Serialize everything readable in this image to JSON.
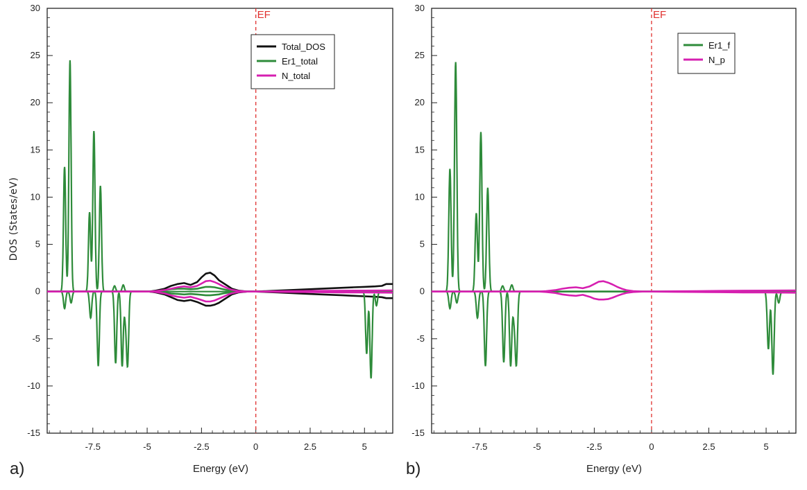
{
  "figure": {
    "ylabel": "DOS (States/eV)",
    "xlabel": "Energy (eV)"
  },
  "chart_data": [
    {
      "type": "line",
      "panel_label": "a)",
      "xlabel": "Energy (eV)",
      "ylabel": "DOS (States/eV)",
      "xlim": [
        -9.6,
        6.3
      ],
      "ylim": [
        -15,
        30
      ],
      "xticks": [
        -7.5,
        -5,
        -2.5,
        0,
        2.5,
        5
      ],
      "xtick_labels": [
        "-7.5",
        "-5",
        "-2.5",
        "0",
        "2.5",
        "5"
      ],
      "yticks": [
        -15,
        -10,
        -5,
        0,
        5,
        10,
        15,
        20,
        25,
        30
      ],
      "ytick_labels": [
        "-15",
        "-10",
        "-5",
        "0",
        "5",
        "10",
        "15",
        "20",
        "25",
        "30"
      ],
      "fermi_level": {
        "x": 0,
        "label": "EF",
        "color": "#e0302e"
      },
      "legend_position": "top-right",
      "series": [
        {
          "name": "Total_DOS",
          "color": "#111111",
          "x": [
            -9.6,
            -4.9,
            -4.6,
            -4.2,
            -3.9,
            -3.6,
            -3.3,
            -3.0,
            -2.7,
            -2.5,
            -2.3,
            -2.1,
            -1.9,
            -1.7,
            -1.5,
            -1.3,
            -1.1,
            -0.8,
            -0.4,
            0,
            1.0,
            2.0,
            3.0,
            4.0,
            4.5,
            5.0,
            5.5,
            5.8,
            6.0,
            6.3
          ],
          "up": [
            0,
            0,
            0.1,
            0.3,
            0.6,
            0.8,
            0.9,
            0.7,
            1.0,
            1.5,
            1.9,
            2.0,
            1.7,
            1.2,
            0.9,
            0.6,
            0.3,
            0.1,
            0,
            0,
            0.1,
            0.2,
            0.3,
            0.4,
            0.45,
            0.5,
            0.55,
            0.6,
            0.8,
            0.8
          ],
          "down": [
            0,
            0,
            -0.1,
            -0.3,
            -0.6,
            -0.9,
            -1.0,
            -0.9,
            -1.1,
            -1.3,
            -1.5,
            -1.5,
            -1.4,
            -1.2,
            -0.9,
            -0.6,
            -0.3,
            -0.1,
            0,
            0,
            -0.1,
            -0.2,
            -0.3,
            -0.4,
            -0.45,
            -0.5,
            -0.55,
            -0.6,
            -0.7,
            -0.7
          ]
        },
        {
          "name": "Er1_total",
          "color": "#2e8b3a",
          "x": [
            -9.6,
            -4.9,
            -4.6,
            -4.2,
            -3.9,
            -3.6,
            -3.3,
            -3.0,
            -2.7,
            -2.5,
            -2.3,
            -2.1,
            -1.9,
            -1.7,
            -1.5,
            -1.3,
            -1.1,
            -0.8,
            -0.4,
            0,
            6.3
          ],
          "up": [
            0,
            0,
            0.05,
            0.15,
            0.25,
            0.3,
            0.3,
            0.25,
            0.3,
            0.4,
            0.5,
            0.5,
            0.45,
            0.35,
            0.25,
            0.15,
            0.08,
            0.03,
            0,
            0,
            0
          ],
          "down": [
            0,
            0,
            -0.05,
            -0.1,
            -0.2,
            -0.25,
            -0.3,
            -0.25,
            -0.3,
            -0.35,
            -0.4,
            -0.4,
            -0.35,
            -0.3,
            -0.2,
            -0.12,
            -0.06,
            -0.02,
            0,
            0,
            0
          ],
          "peaks_up": [
            {
              "x": -8.8,
              "y": 13.2
            },
            {
              "x": -8.55,
              "y": 24.5
            },
            {
              "x": -7.65,
              "y": 8.4
            },
            {
              "x": -7.45,
              "y": 17.0
            },
            {
              "x": -7.15,
              "y": 11.2
            },
            {
              "x": -6.5,
              "y": 0.6
            },
            {
              "x": -6.1,
              "y": 0.7
            }
          ],
          "peaks_down": [
            {
              "x": -8.8,
              "y": -1.8
            },
            {
              "x": -8.5,
              "y": -1.2
            },
            {
              "x": -7.6,
              "y": -2.8
            },
            {
              "x": -7.25,
              "y": -7.9
            },
            {
              "x": -6.45,
              "y": -7.6
            },
            {
              "x": -6.15,
              "y": -7.9
            },
            {
              "x": -6.0,
              "y": -2.6
            },
            {
              "x": -5.9,
              "y": -7.6
            },
            {
              "x": 5.1,
              "y": -6.6
            },
            {
              "x": 5.3,
              "y": -9.2
            },
            {
              "x": 5.55,
              "y": -1.5
            }
          ]
        },
        {
          "name": "N_total",
          "color": "#d61fb0",
          "x": [
            -9.6,
            -4.9,
            -4.6,
            -4.2,
            -3.9,
            -3.6,
            -3.3,
            -3.0,
            -2.7,
            -2.5,
            -2.3,
            -2.1,
            -1.9,
            -1.7,
            -1.5,
            -1.3,
            -1.1,
            -0.8,
            -0.4,
            0,
            1.0,
            2.0,
            3.0,
            4.0,
            5.0,
            6.3
          ],
          "up": [
            0,
            0,
            0.05,
            0.15,
            0.3,
            0.45,
            0.55,
            0.45,
            0.6,
            0.85,
            1.1,
            1.15,
            1.0,
            0.8,
            0.55,
            0.35,
            0.18,
            0.06,
            0,
            0,
            0.03,
            0.05,
            0.07,
            0.09,
            0.1,
            0.12
          ],
          "down": [
            0,
            0,
            -0.05,
            -0.2,
            -0.4,
            -0.55,
            -0.65,
            -0.55,
            -0.75,
            -0.9,
            -1.05,
            -1.05,
            -0.95,
            -0.75,
            -0.55,
            -0.35,
            -0.18,
            -0.06,
            0,
            0,
            -0.03,
            -0.05,
            -0.07,
            -0.09,
            -0.1,
            -0.12
          ]
        }
      ]
    },
    {
      "type": "line",
      "panel_label": "b)",
      "xlabel": "Energy (eV)",
      "ylabel": "",
      "xlim": [
        -9.6,
        6.3
      ],
      "ylim": [
        -15,
        30
      ],
      "xticks": [
        -7.5,
        -5,
        -2.5,
        0,
        2.5,
        5
      ],
      "xtick_labels": [
        "-7.5",
        "-5",
        "-2.5",
        "0",
        "2.5",
        "5"
      ],
      "yticks": [
        -15,
        -10,
        -5,
        0,
        5,
        10,
        15,
        20,
        25,
        30
      ],
      "ytick_labels": [
        "-15",
        "-10",
        "-5",
        "0",
        "5",
        "10",
        "15",
        "20",
        "25",
        "30"
      ],
      "fermi_level": {
        "x": 0,
        "label": "EF",
        "color": "#e0302e"
      },
      "legend_position": "top-right",
      "series": [
        {
          "name": "Er1_f",
          "color": "#2e8b3a",
          "x": [
            -9.6,
            6.3
          ],
          "up": [
            0,
            0
          ],
          "down": [
            0,
            0
          ],
          "peaks_up": [
            {
              "x": -8.8,
              "y": 13.0
            },
            {
              "x": -8.55,
              "y": 24.3
            },
            {
              "x": -7.65,
              "y": 8.3
            },
            {
              "x": -7.45,
              "y": 16.9
            },
            {
              "x": -7.15,
              "y": 11.0
            },
            {
              "x": -6.5,
              "y": 0.6
            },
            {
              "x": -6.1,
              "y": 0.7
            }
          ],
          "peaks_down": [
            {
              "x": -8.8,
              "y": -1.8
            },
            {
              "x": -8.5,
              "y": -1.2
            },
            {
              "x": -7.6,
              "y": -2.8
            },
            {
              "x": -7.25,
              "y": -7.9
            },
            {
              "x": -6.45,
              "y": -7.5
            },
            {
              "x": -6.15,
              "y": -7.9
            },
            {
              "x": -6.0,
              "y": -2.6
            },
            {
              "x": -5.9,
              "y": -7.5
            },
            {
              "x": 5.1,
              "y": -6.1
            },
            {
              "x": 5.3,
              "y": -8.8
            },
            {
              "x": 5.55,
              "y": -1.2
            }
          ]
        },
        {
          "name": "N_p",
          "color": "#d61fb0",
          "x": [
            -9.6,
            -4.9,
            -4.6,
            -4.2,
            -3.9,
            -3.6,
            -3.3,
            -3.0,
            -2.7,
            -2.5,
            -2.3,
            -2.1,
            -1.9,
            -1.7,
            -1.5,
            -1.3,
            -1.1,
            -0.8,
            -0.4,
            0,
            1.0,
            2.0,
            3.0,
            4.0,
            5.0,
            6.3
          ],
          "up": [
            0,
            0,
            0.05,
            0.15,
            0.3,
            0.4,
            0.45,
            0.35,
            0.55,
            0.8,
            1.05,
            1.1,
            0.95,
            0.75,
            0.5,
            0.3,
            0.15,
            0.05,
            0,
            0,
            0.03,
            0.05,
            0.07,
            0.09,
            0.1,
            0.12
          ],
          "down": [
            0,
            0,
            -0.05,
            -0.15,
            -0.3,
            -0.4,
            -0.45,
            -0.35,
            -0.55,
            -0.75,
            -0.85,
            -0.85,
            -0.8,
            -0.65,
            -0.45,
            -0.28,
            -0.14,
            -0.05,
            0,
            0,
            -0.03,
            -0.05,
            -0.07,
            -0.09,
            -0.1,
            -0.12
          ]
        }
      ]
    }
  ]
}
